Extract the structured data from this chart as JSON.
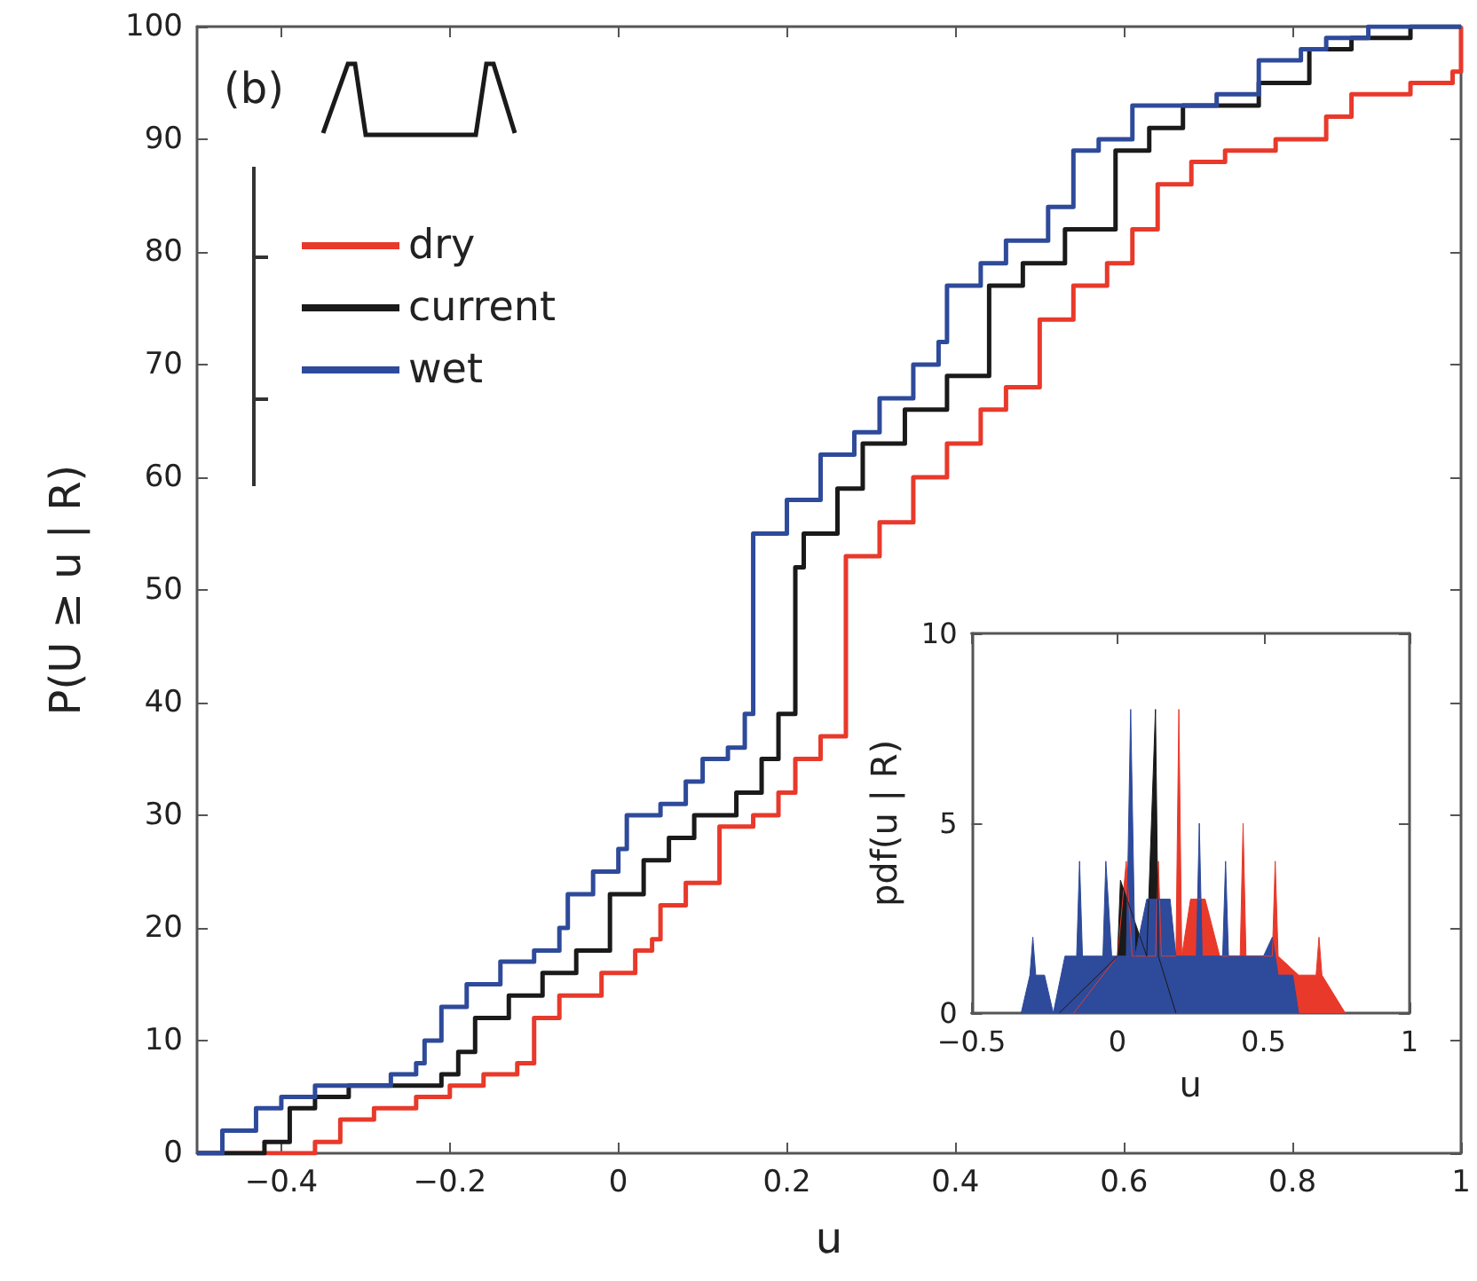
{
  "chart_data": [
    {
      "type": "step",
      "xlabel": "u",
      "ylabel": "P(U ≥ u | R)",
      "annotations": [
        "(b)"
      ],
      "xlim": [
        -0.5,
        1
      ],
      "xticks": [
        -0.4,
        -0.2,
        0,
        0.2,
        0.4,
        0.6,
        0.8,
        1
      ],
      "ylim": [
        0,
        100
      ],
      "yticks": [
        0,
        10,
        20,
        30,
        40,
        50,
        60,
        70,
        80,
        90,
        100
      ],
      "grid": false,
      "legend": "top left",
      "series": [
        {
          "name": "dry",
          "color": "#e8392b",
          "x": [
            -0.5,
            -0.36,
            -0.33,
            -0.29,
            -0.24,
            -0.2,
            -0.16,
            -0.12,
            -0.1,
            -0.07,
            -0.02,
            0.02,
            0.04,
            0.05,
            0.08,
            0.12,
            0.16,
            0.19,
            0.21,
            0.24,
            0.27,
            0.31,
            0.35,
            0.39,
            0.43,
            0.46,
            0.5,
            0.54,
            0.58,
            0.61,
            0.64,
            0.68,
            0.72,
            0.78,
            0.84,
            0.87,
            0.94,
            0.99,
            1
          ],
          "values": [
            0,
            1,
            3,
            4,
            5,
            6,
            7,
            8,
            12,
            14,
            16,
            18,
            19,
            22,
            24,
            29,
            30,
            32,
            35,
            37,
            53,
            56,
            60,
            63,
            66,
            68,
            74,
            77,
            79,
            82,
            86,
            88,
            89,
            90,
            92,
            94,
            95,
            96,
            100
          ]
        },
        {
          "name": "current",
          "color": "#1a1a1a",
          "x": [
            -0.5,
            -0.42,
            -0.39,
            -0.36,
            -0.32,
            -0.21,
            -0.19,
            -0.17,
            -0.13,
            -0.09,
            -0.05,
            -0.01,
            0.03,
            0.06,
            0.09,
            0.14,
            0.17,
            0.19,
            0.21,
            0.22,
            0.26,
            0.29,
            0.34,
            0.39,
            0.44,
            0.48,
            0.53,
            0.59,
            0.63,
            0.67,
            0.76,
            0.82,
            0.87,
            0.94,
            1
          ],
          "values": [
            0,
            1,
            4,
            5,
            6,
            7,
            9,
            12,
            14,
            16,
            18,
            23,
            26,
            28,
            30,
            32,
            35,
            39,
            52,
            55,
            59,
            63,
            66,
            69,
            77,
            79,
            82,
            89,
            91,
            93,
            95,
            98,
            99,
            100,
            100
          ]
        },
        {
          "name": "wet",
          "color": "#2e4a9a",
          "x": [
            -0.5,
            -0.47,
            -0.43,
            -0.4,
            -0.36,
            -0.27,
            -0.24,
            -0.23,
            -0.21,
            -0.18,
            -0.14,
            -0.1,
            -0.07,
            -0.06,
            -0.03,
            0,
            0.01,
            0.05,
            0.08,
            0.1,
            0.13,
            0.15,
            0.16,
            0.2,
            0.24,
            0.28,
            0.31,
            0.35,
            0.38,
            0.39,
            0.43,
            0.46,
            0.51,
            0.54,
            0.57,
            0.61,
            0.71,
            0.76,
            0.81,
            0.84,
            0.89,
            1
          ],
          "values": [
            0,
            2,
            4,
            5,
            6,
            7,
            8,
            10,
            13,
            15,
            17,
            18,
            20,
            23,
            25,
            27,
            30,
            31,
            33,
            35,
            36,
            39,
            55,
            58,
            62,
            64,
            67,
            70,
            72,
            77,
            79,
            81,
            84,
            89,
            90,
            93,
            94,
            97,
            98,
            99,
            100,
            100
          ]
        }
      ]
    },
    {
      "type": "area",
      "xlabel": "u",
      "ylabel": "pdf(u | R)",
      "xlim": [
        -0.5,
        1
      ],
      "xticks": [
        -0.5,
        0,
        0.5,
        1
      ],
      "ylim": [
        0,
        10
      ],
      "yticks": [
        0,
        5,
        10
      ],
      "grid": false,
      "legend": false,
      "series": [
        {
          "color": "#e8392b",
          "x": [
            -0.15,
            0,
            0.03,
            0.05,
            0.13,
            0.14,
            0.15,
            0.2,
            0.21,
            0.22,
            0.25,
            0.3,
            0.35,
            0.42,
            0.43,
            0.44,
            0.53,
            0.54,
            0.55,
            0.62,
            0.68,
            0.69,
            0.7,
            0.78
          ],
          "values": [
            0,
            1.5,
            4,
            1.5,
            1.5,
            4,
            1.5,
            1.5,
            8,
            1.5,
            3,
            3,
            1.5,
            1.5,
            5,
            1.5,
            1.5,
            4,
            1.5,
            1,
            1,
            2,
            1,
            0
          ]
        },
        {
          "color": "#1a1a1a",
          "x": [
            -0.2,
            0,
            0.01,
            0.1,
            0.13,
            0.14,
            0.2
          ],
          "values": [
            0,
            1.5,
            3.5,
            1.5,
            8,
            1.5,
            0
          ]
        },
        {
          "color": "#2e4a9a",
          "x": [
            -0.33,
            -0.3,
            -0.29,
            -0.28,
            -0.25,
            -0.22,
            -0.18,
            -0.14,
            -0.13,
            -0.12,
            -0.05,
            -0.04,
            -0.02,
            0.03,
            0.045,
            0.06,
            0.1,
            0.12,
            0.18,
            0.2,
            0.27,
            0.28,
            0.29,
            0.36,
            0.37,
            0.38,
            0.5,
            0.53,
            0.55,
            0.6,
            0.62
          ],
          "values": [
            0,
            1,
            2,
            1,
            1,
            0,
            1.5,
            1.5,
            4,
            1.5,
            1.5,
            4,
            1.5,
            1.5,
            8,
            1.5,
            3,
            3,
            3,
            1.5,
            1.5,
            5,
            1.5,
            1.5,
            4,
            1.5,
            1.5,
            2,
            1,
            1,
            0
          ]
        }
      ]
    }
  ]
}
